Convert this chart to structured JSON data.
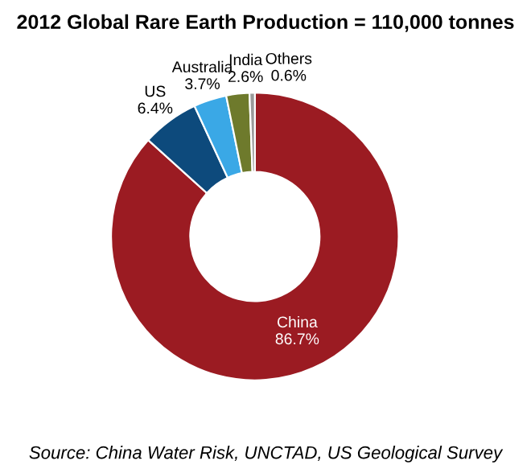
{
  "chart_data": {
    "type": "donut",
    "title": "2012 Global Rare Earth Production = 110,000 tonnes",
    "categories": [
      "China",
      "US",
      "Australia",
      "India",
      "Others"
    ],
    "values": [
      86.7,
      6.4,
      3.7,
      2.6,
      0.6
    ],
    "value_labels": [
      "86.7%",
      "6.4%",
      "3.7%",
      "2.6%",
      "0.6%"
    ],
    "colors": [
      "#9b1b22",
      "#0d4a7c",
      "#3aa8e6",
      "#6e7a2c",
      "#9a9a9a"
    ],
    "legend": false,
    "annotations": [
      "Source: China Water Risk, UNCTAD, US Geological Survey"
    ]
  }
}
